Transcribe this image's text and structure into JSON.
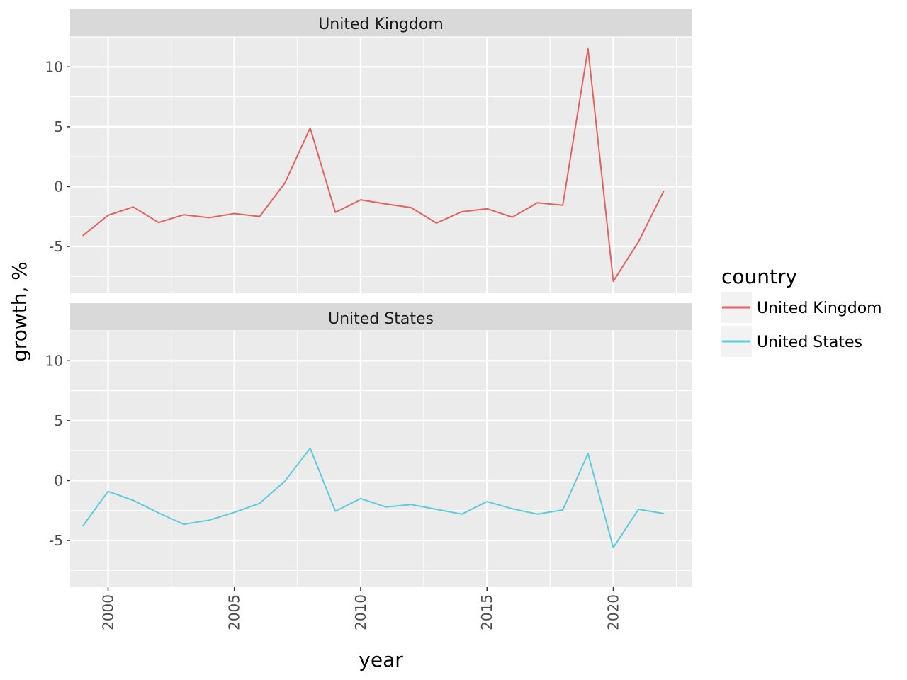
{
  "chart_data": {
    "type": "line",
    "facets": [
      "United Kingdom",
      "United States"
    ],
    "xlabel": "year",
    "ylabel": "growth, %",
    "legend_title": "country",
    "legend_position": "right",
    "grid": true,
    "xlim": [
      1998.5,
      2023.1
    ],
    "ylim": [
      -8.9,
      12.5
    ],
    "x_ticks": [
      2000,
      2005,
      2010,
      2015,
      2020
    ],
    "x_tick_labels": [
      "2000",
      "2005",
      "2010",
      "2015",
      "2020"
    ],
    "y_ticks": [
      -5,
      0,
      5,
      10
    ],
    "y_tick_labels": [
      "-5",
      "0",
      "5",
      "10"
    ],
    "x": [
      1999,
      2000,
      2001,
      2002,
      2003,
      2004,
      2005,
      2006,
      2007,
      2008,
      2009,
      2010,
      2011,
      2012,
      2013,
      2014,
      2015,
      2016,
      2017,
      2018,
      2019,
      2020,
      2021,
      2022
    ],
    "series": [
      {
        "name": "United Kingdom",
        "color": "#E2625E",
        "values": [
          -4.1,
          -2.4,
          -1.7,
          -3.0,
          -2.35,
          -2.6,
          -2.25,
          -2.5,
          0.3,
          4.9,
          -2.15,
          -1.1,
          -1.45,
          -1.75,
          -3.05,
          -2.1,
          -1.85,
          -2.55,
          -1.35,
          -1.55,
          11.5,
          -7.9,
          -4.6,
          -0.35
        ]
      },
      {
        "name": "United States",
        "color": "#5BCCDA",
        "values": [
          -3.8,
          -0.9,
          -1.65,
          -2.7,
          -3.65,
          -3.3,
          -2.65,
          -1.9,
          -0.05,
          2.7,
          -2.55,
          -1.5,
          -2.2,
          -2.0,
          -2.4,
          -2.8,
          -1.75,
          -2.35,
          -2.8,
          -2.45,
          2.25,
          -5.6,
          -2.4,
          -2.75
        ]
      }
    ]
  }
}
